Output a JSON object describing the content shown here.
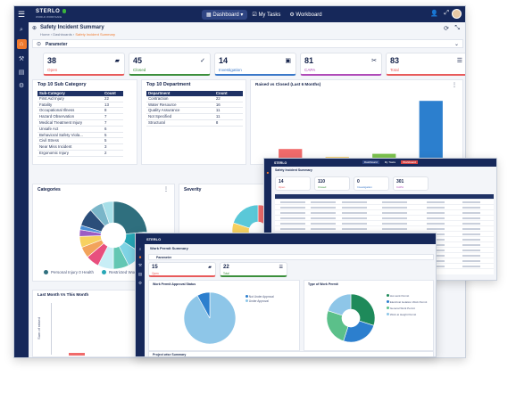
{
  "main": {
    "logo": "STERLO",
    "logo_badge": "",
    "logo_sub": "WORLD WORKSAFE",
    "nav": [
      "Dashboard",
      "My Tasks",
      "Workboard"
    ],
    "page_title": "Safety Incident Summary",
    "breadcrumb": [
      "Home",
      "Dashboards",
      "Safety Incident Summary"
    ],
    "parameter_label": "Parameter",
    "kpis": [
      {
        "value": "38",
        "label": "Open",
        "icon": "book-icon",
        "accent": "#e85b5b"
      },
      {
        "value": "45",
        "label": "Closed",
        "icon": "check-icon",
        "accent": "#3c8f3c"
      },
      {
        "value": "14",
        "label": "Investigation",
        "icon": "clipboard-icon",
        "accent": "#3a78c9"
      },
      {
        "value": "81",
        "label": "CAPA",
        "icon": "tools-icon",
        "accent": "#b04bb8"
      },
      {
        "value": "83",
        "label": "Total",
        "icon": "sliders-icon",
        "accent": "#e85b5b"
      }
    ],
    "top_sub": {
      "title": "Top 10 Sub Category",
      "headers": [
        "Sub-Category",
        "Count"
      ],
      "rows": [
        [
          "First Aid Injury",
          "22"
        ],
        [
          "Fatality",
          "13"
        ],
        [
          "Occupational Illness",
          "8"
        ],
        [
          "Hazard Observation",
          "7"
        ],
        [
          "Medical Treatment Injury",
          "7"
        ],
        [
          "Unsafe Act",
          "6"
        ],
        [
          "Behavioral Safety Viola...",
          "5"
        ],
        [
          "Civil Stress",
          "5"
        ],
        [
          "Near Miss Incident",
          "3"
        ],
        [
          "Ergonomic Injury",
          "2"
        ]
      ]
    },
    "top_dept": {
      "title": "Top 10 Department",
      "headers": [
        "Department",
        "Count"
      ],
      "rows": [
        [
          "Contraction",
          "22"
        ],
        [
          "Water Resource",
          "16"
        ],
        [
          "Quality Assurance",
          "11"
        ],
        [
          "Not Specified",
          "11"
        ],
        [
          "Structural",
          "8"
        ]
      ]
    },
    "raised_title": "Raised vs Closed (Last 6 Months)",
    "categories_title": "Categories",
    "severity_title": "Severity",
    "legend": [
      "Personal Injury 0 Health",
      "Restricted Work"
    ],
    "last_month_title": "Last Month Vs This Month",
    "y_axis_label": "Sum of raised"
  },
  "chart_data": [
    {
      "type": "bar",
      "title": "Raised vs Closed (Last 6 Months)",
      "categories": [
        "",
        "",
        "",
        ""
      ],
      "values": [
        6,
        1,
        3,
        36
      ],
      "colors": [
        "#f06b6b",
        "#f5c64a",
        "#7dc44f",
        "#2c7fce"
      ],
      "ylim": [
        0,
        40
      ]
    },
    {
      "type": "pie",
      "title": "Categories",
      "values": [
        22,
        10,
        8,
        7,
        7,
        6,
        5,
        5,
        3,
        2,
        8,
        6,
        5
      ],
      "colors": [
        "#2f6f7e",
        "#26a7b6",
        "#7ed3e4",
        "#63c7b3",
        "#c8eef6",
        "#e84f7e",
        "#f2a35b",
        "#f7d160",
        "#9b5cc4",
        "#4a8fd6",
        "#2b4e7a",
        "#7ab6c9",
        "#a7dfe8"
      ]
    },
    {
      "type": "pie",
      "title": "Severity",
      "values": [
        35,
        25,
        20,
        20
      ],
      "colors": [
        "#f06b6b",
        "#f5a34a",
        "#f7d160",
        "#5ac8d8"
      ]
    }
  ],
  "overlay_small": {
    "title": "Safety Incident Summary",
    "kpis": [
      {
        "value": "14",
        "label": "Open"
      },
      {
        "value": "110",
        "label": "Closed"
      },
      {
        "value": "0",
        "label": "Investigation"
      },
      {
        "value": "301",
        "label": "CAPA"
      }
    ]
  },
  "overlay_permit": {
    "title": "Work Permit Summary",
    "parameter_label": "Parameter",
    "kpis": [
      {
        "value": "15",
        "label": "Open",
        "icon": "book-icon"
      },
      {
        "value": "22",
        "label": "Total",
        "icon": "sliders-icon"
      }
    ],
    "pie1_title": "Work Permit Approval Status",
    "pie1_legend": [
      "Not Under Approval",
      "Under Approval"
    ],
    "pie2_title": "Type of Work Permit",
    "pie2_legend": [
      "Hot work Permit",
      "Electrical Isolation Work Permit",
      "General Work Permit",
      "Work at Height Permit"
    ],
    "project_title": "Project wise Summary"
  }
}
